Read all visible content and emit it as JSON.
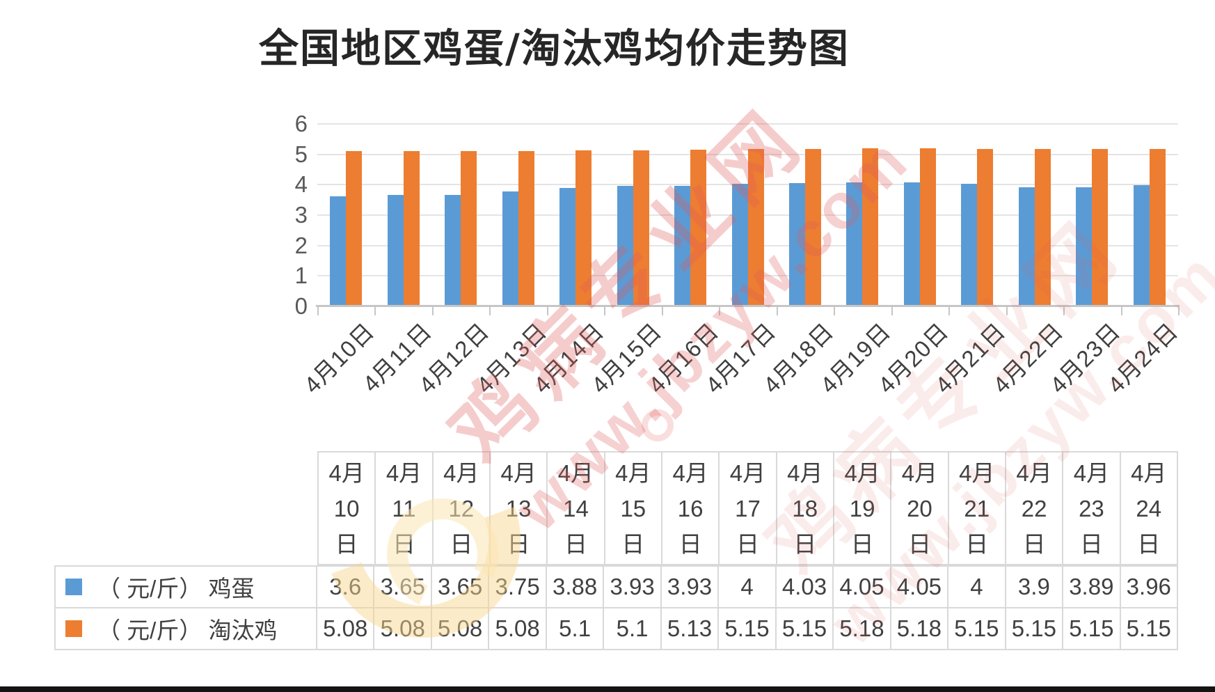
{
  "title": "全国地区鸡蛋/淘汰鸡均价走势图",
  "watermark": {
    "brand": "鸡病专业网",
    "url": "www.jbzyw.com"
  },
  "chart_data": {
    "type": "bar",
    "title": "全国地区鸡蛋/淘汰鸡均价走势图",
    "categories": [
      "4月10日",
      "4月11日",
      "4月12日",
      "4月13日",
      "4月14日",
      "4月15日",
      "4月16日",
      "4月17日",
      "4月18日",
      "4月19日",
      "4月20日",
      "4月21日",
      "4月22日",
      "4月23日",
      "4月24日"
    ],
    "series": [
      {
        "name": "（ 元/斤） 鸡蛋",
        "color": "#5B9BD5",
        "values": [
          3.6,
          3.65,
          3.65,
          3.75,
          3.88,
          3.93,
          3.93,
          4,
          4.03,
          4.05,
          4.05,
          4,
          3.9,
          3.89,
          3.96
        ]
      },
      {
        "name": "（ 元/斤） 淘汰鸡",
        "color": "#ED7D31",
        "values": [
          5.08,
          5.08,
          5.08,
          5.08,
          5.1,
          5.1,
          5.13,
          5.15,
          5.15,
          5.18,
          5.18,
          5.15,
          5.15,
          5.15,
          5.15
        ]
      }
    ],
    "ylim": [
      0,
      6
    ],
    "yticks": [
      0,
      1,
      2,
      3,
      4,
      5,
      6
    ],
    "grid": true,
    "legend_position": "table-rows-left",
    "table_header_wrap": "per-character-lines"
  },
  "colors": {
    "grid": "#E4E4E4",
    "axis": "#C6C6C6",
    "text": "#404040",
    "ylabel": "#595959",
    "table_border": "#D9D9D9",
    "watermark_red": "#E05A5A"
  }
}
